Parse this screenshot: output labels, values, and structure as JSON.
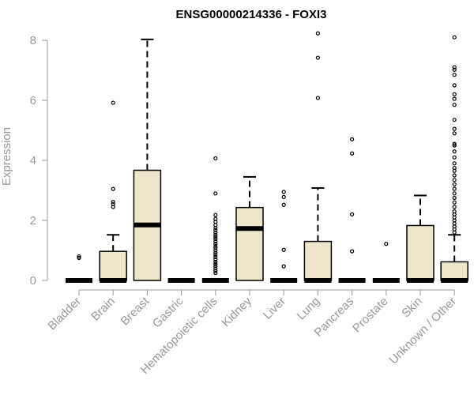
{
  "chart_data": {
    "type": "boxplot",
    "title": "ENSG00000214336 - FOXI3",
    "ylabel": "Expression",
    "xlabel": "",
    "ylim": [
      0,
      8.25
    ],
    "yticks": [
      0,
      2,
      4,
      6,
      8
    ],
    "box_fill": "#ede6cb",
    "categories": [
      "Bladder",
      "Brain",
      "Breast",
      "Gastric",
      "Hematopoietic cells",
      "Kidney",
      "Liver",
      "Lung",
      "Pancreas",
      "Prostate",
      "Skin",
      "Unknown / Other"
    ],
    "boxes": [
      {
        "category": "Bladder",
        "whisker_low": 0,
        "q1": 0,
        "median": 0,
        "q3": 0,
        "whisker_high": 0,
        "outliers": [
          0.75,
          0.8
        ]
      },
      {
        "category": "Brain",
        "whisker_low": 0,
        "q1": 0,
        "median": 0,
        "q3": 0.97,
        "whisker_high": 1.52,
        "outliers": [
          2.45,
          2.55,
          2.62,
          3.05,
          5.92
        ]
      },
      {
        "category": "Breast",
        "whisker_low": 0,
        "q1": 0,
        "median": 1.85,
        "q3": 3.67,
        "whisker_high": 8.03,
        "outliers": []
      },
      {
        "category": "Gastric",
        "whisker_low": 0,
        "q1": 0,
        "median": 0,
        "q3": 0,
        "whisker_high": 0,
        "outliers": []
      },
      {
        "category": "Hematopoietic cells",
        "whisker_low": 0,
        "q1": 0,
        "median": 0,
        "q3": 0,
        "whisker_high": 0,
        "outliers": [
          0.25,
          0.32,
          0.4,
          0.48,
          0.55,
          0.62,
          0.7,
          0.78,
          0.85,
          0.92,
          1.0,
          1.08,
          1.15,
          1.22,
          1.3,
          1.38,
          1.45,
          1.52,
          1.6,
          1.68,
          1.75,
          1.85,
          1.95,
          2.05,
          2.18,
          2.9,
          4.07
        ]
      },
      {
        "category": "Kidney",
        "whisker_low": 0,
        "q1": 0,
        "median": 1.73,
        "q3": 2.43,
        "whisker_high": 3.45,
        "outliers": []
      },
      {
        "category": "Liver",
        "whisker_low": 0,
        "q1": 0,
        "median": 0,
        "q3": 0,
        "whisker_high": 0,
        "outliers": [
          0.47,
          1.02,
          2.52,
          2.78,
          2.95
        ]
      },
      {
        "category": "Lung",
        "whisker_low": 0,
        "q1": 0,
        "median": 0,
        "q3": 1.3,
        "whisker_high": 3.08,
        "outliers": [
          6.08,
          7.42,
          8.23
        ]
      },
      {
        "category": "Pancreas",
        "whisker_low": 0,
        "q1": 0,
        "median": 0,
        "q3": 0,
        "whisker_high": 0,
        "outliers": [
          0.97,
          2.2,
          4.23,
          4.7
        ]
      },
      {
        "category": "Prostate",
        "whisker_low": 0,
        "q1": 0,
        "median": 0,
        "q3": 0,
        "whisker_high": 0,
        "outliers": [
          1.22
        ]
      },
      {
        "category": "Skin",
        "whisker_low": 0,
        "q1": 0,
        "median": 0,
        "q3": 1.83,
        "whisker_high": 2.83,
        "outliers": []
      },
      {
        "category": "Unknown / Other",
        "whisker_low": 0,
        "q1": 0,
        "median": 0,
        "q3": 0.62,
        "whisker_high": 1.52,
        "outliers": [
          1.6,
          1.7,
          1.8,
          1.9,
          2.0,
          2.1,
          2.2,
          2.3,
          2.45,
          2.6,
          2.75,
          2.9,
          3.05,
          3.2,
          3.35,
          3.5,
          3.65,
          3.75,
          3.9,
          4.1,
          4.3,
          4.5,
          4.55,
          4.9,
          5.05,
          5.35,
          5.85,
          6.05,
          6.2,
          6.5,
          6.85,
          7.02,
          7.1,
          8.1
        ]
      }
    ]
  }
}
